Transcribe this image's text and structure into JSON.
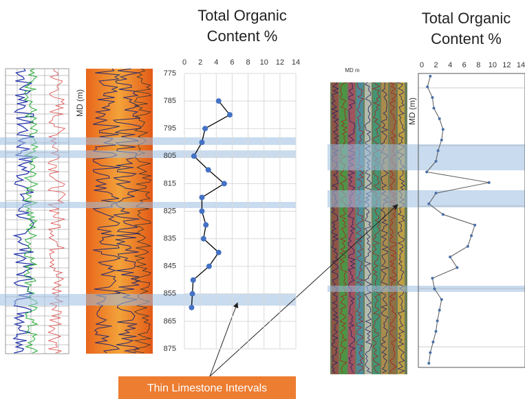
{
  "chart_data": [
    {
      "type": "line",
      "title": "Total Organic Content %",
      "ylabel": "MD (m)",
      "depths": [
        785,
        790,
        795,
        800,
        805,
        810,
        815,
        820,
        825,
        830,
        835,
        840,
        845,
        850,
        855,
        860
      ],
      "values": [
        4.3,
        5.7,
        2.6,
        2.2,
        1.2,
        3.0,
        5.0,
        2.2,
        2.2,
        2.7,
        2.4,
        4.3,
        3.1,
        1.1,
        1.0,
        0.9
      ],
      "xlim": [
        0,
        14
      ],
      "xticks": [
        0,
        2,
        4,
        6,
        8,
        10,
        12,
        14
      ],
      "ylim": [
        775,
        875
      ],
      "yticks": [
        775,
        785,
        795,
        805,
        815,
        825,
        835,
        845,
        855,
        865,
        875
      ],
      "y_inverted": true,
      "grid": true,
      "color": "#4472c4",
      "line_color": "#000000",
      "annotation": "Thin Limestone Intervals"
    },
    {
      "type": "line",
      "title": "Total Organic Content %",
      "ylabel": "MD (m)",
      "track_label": "MD m",
      "categories": [
        null,
        null,
        null,
        null,
        null,
        null,
        null,
        null,
        null,
        null,
        null,
        null,
        null,
        null,
        null,
        null,
        null,
        null,
        null,
        null,
        null,
        null,
        null,
        null,
        null,
        null,
        null,
        null
      ],
      "values": [
        1.2,
        0.8,
        1.5,
        1.7,
        2.5,
        3.0,
        2.8,
        2.3,
        2.0,
        0.7,
        9.5,
        2.0,
        1.0,
        3.0,
        7.5,
        7.0,
        6.5,
        4.0,
        5.0,
        1.5,
        1.8,
        2.8,
        2.5,
        2.2,
        2.0,
        1.6,
        1.2,
        1.0
      ],
      "xlim": [
        0,
        14
      ],
      "xticks": [
        0,
        2,
        4,
        6,
        8,
        10,
        12,
        14
      ],
      "y_inverted": true,
      "color": "#4a6fa5"
    }
  ]
}
